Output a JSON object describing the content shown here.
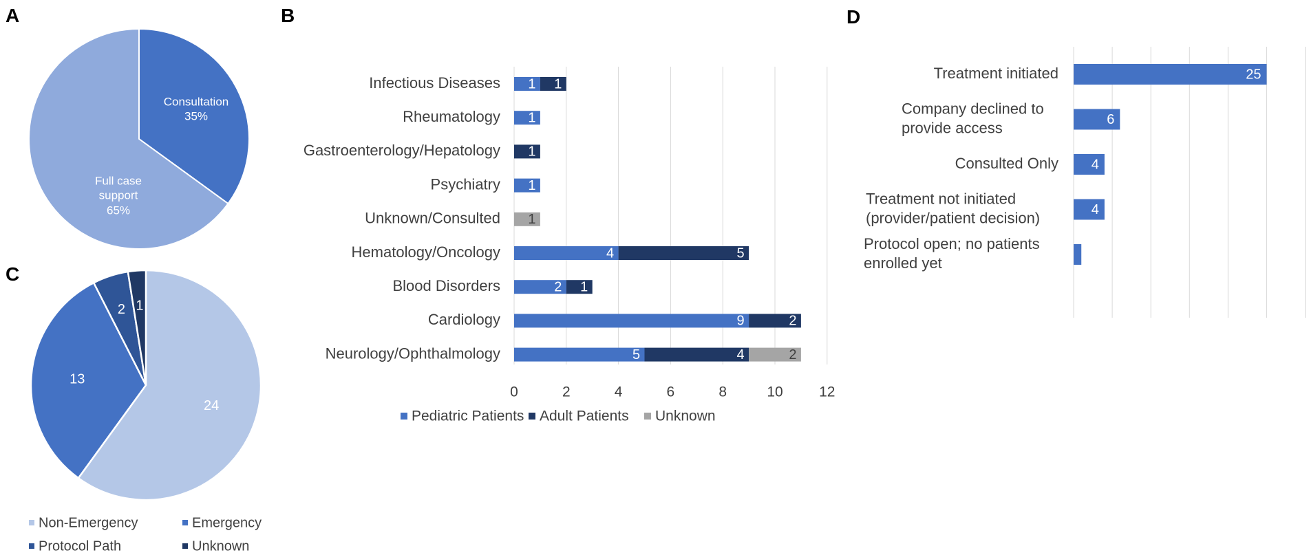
{
  "colors": {
    "pediatric": "#4472C4",
    "adult": "#203864",
    "unknown": "#A5A5A5",
    "consultation": "#4472C4",
    "full_case": "#8FAADC",
    "non_emergency": "#B4C7E7",
    "emergency": "#4472C4",
    "protocol": "#2F5597",
    "unknown_dark": "#203864",
    "grid": "#D9D9D9",
    "text": "#404040"
  },
  "chart_data": [
    {
      "panel": "A",
      "type": "pie",
      "slices": [
        {
          "label": "Consultation",
          "percent": "35%",
          "value": 35
        },
        {
          "label": "Full case support",
          "label_lines": [
            "Full case",
            "support"
          ],
          "percent": "65%",
          "value": 65
        }
      ]
    },
    {
      "panel": "B",
      "type": "bar",
      "orientation": "horizontal",
      "stacked": true,
      "categories": [
        "Infectious Diseases",
        "Rheumatology",
        "Gastroenterology/Hepatology",
        "Psychiatry",
        "Unknown/Consulted",
        "Hematology/Oncology",
        "Blood Disorders",
        "Cardiology",
        "Neurology/Ophthalmology"
      ],
      "series": [
        {
          "name": "Pediatric Patients",
          "values": [
            1,
            1,
            0,
            1,
            0,
            4,
            2,
            9,
            5
          ]
        },
        {
          "name": "Adult Patients",
          "values": [
            1,
            0,
            1,
            0,
            0,
            5,
            1,
            2,
            4
          ]
        },
        {
          "name": "Unknown",
          "values": [
            0,
            0,
            0,
            0,
            1,
            0,
            0,
            0,
            2
          ]
        }
      ],
      "xlim": [
        0,
        12
      ],
      "xticks": [
        "0",
        "2",
        "4",
        "6",
        "8",
        "10",
        "12"
      ],
      "legend": "bottom"
    },
    {
      "panel": "C",
      "type": "pie",
      "slices": [
        {
          "label": "Non-Emergency",
          "value": 24
        },
        {
          "label": "Emergency",
          "value": 13
        },
        {
          "label": "Protocol Path",
          "value": 2
        },
        {
          "label": "Unknown",
          "value": 1
        }
      ],
      "legend": "bottom"
    },
    {
      "panel": "D",
      "type": "bar",
      "orientation": "horizontal",
      "categories": [
        {
          "label": "Treatment initiated",
          "lines": [
            "Treatment initiated"
          ]
        },
        {
          "label": "Company declined to provide access",
          "lines": [
            "Company declined to",
            "provide access"
          ]
        },
        {
          "label": "Consulted Only",
          "lines": [
            "Consulted Only"
          ]
        },
        {
          "label": "Treatment not initiated (provider/patient decision)",
          "lines": [
            "Treatment not initiated",
            "(provider/patient decision)"
          ]
        },
        {
          "label": "Protocol open; no patients enrolled yet",
          "lines": [
            "Protocol open; no patients",
            "enrolled yet"
          ]
        }
      ],
      "values": [
        25,
        6,
        4,
        4,
        1
      ],
      "value_labels": [
        "25",
        "6",
        "4",
        "4",
        ""
      ],
      "xlim": [
        0,
        30
      ]
    }
  ],
  "panel_labels": {
    "a": "A",
    "b": "B",
    "c": "C",
    "d": "D"
  }
}
